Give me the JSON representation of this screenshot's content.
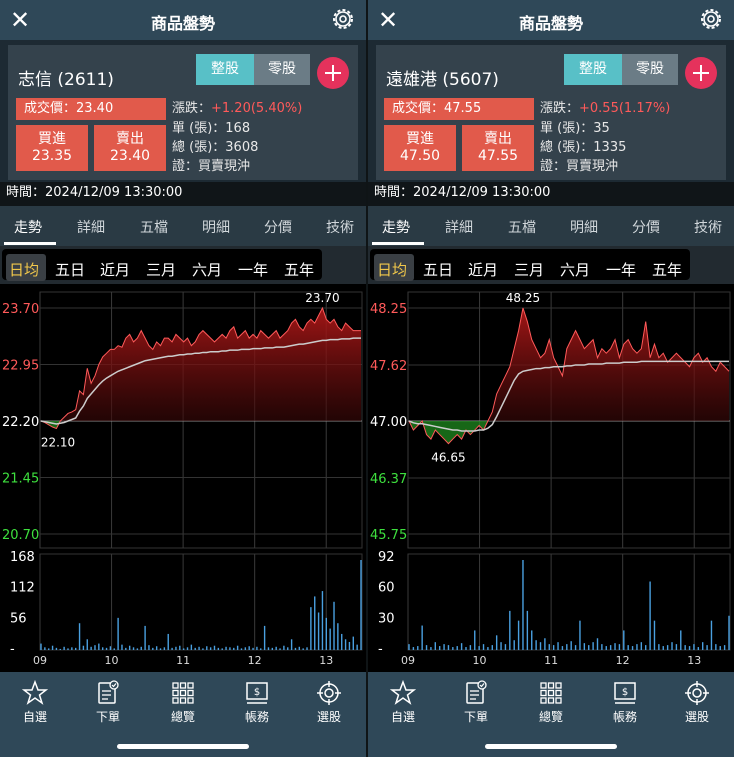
{
  "panels": [
    {
      "header": {
        "title": "商品盤勢"
      },
      "quote": {
        "stock": "志信 (2611)",
        "seg_whole": "整股",
        "seg_odd": "零股",
        "trade_label": "成交價：23.40",
        "change_label": "漲跌：",
        "change_value": "+1.20(5.40%)",
        "unit_label": "單 (張)：168",
        "total_label": "總 (張)：3608",
        "cert_label": "證：買賣現沖",
        "buy_label": "買進",
        "buy_price": "23.35",
        "sell_label": "賣出",
        "sell_price": "23.40"
      },
      "time_label": "時間：2024/12/09 13:30:00",
      "chart": {
        "ref": 22.2,
        "price_min": 20.7,
        "price_max": 23.7,
        "price_axis": [
          "23.70",
          "22.95",
          "22.20",
          "21.45",
          "20.70"
        ],
        "high_label": "23.70",
        "low_label": "22.10",
        "volume_axis": [
          "168",
          "112",
          "56",
          "-"
        ],
        "volume_max": 168,
        "x_labels": [
          "09",
          "10",
          "11",
          "12",
          "13"
        ],
        "price": [
          22.2,
          22.18,
          22.15,
          22.12,
          22.1,
          22.2,
          22.25,
          22.3,
          22.32,
          22.35,
          22.6,
          22.55,
          22.9,
          22.7,
          22.8,
          22.95,
          23.05,
          23.1,
          23.15,
          23.15,
          23.2,
          23.18,
          23.3,
          23.35,
          23.25,
          23.3,
          23.4,
          23.3,
          23.2,
          23.15,
          23.25,
          23.2,
          23.3,
          23.3,
          23.25,
          23.35,
          23.3,
          23.25,
          23.3,
          23.2,
          23.25,
          23.35,
          23.4,
          23.35,
          23.3,
          23.25,
          23.3,
          23.35,
          23.3,
          23.4,
          23.45,
          23.3,
          23.35,
          23.4,
          23.3,
          23.35,
          23.3,
          23.4,
          23.35,
          23.3,
          23.35,
          23.4,
          23.3,
          23.35,
          23.4,
          23.5,
          23.55,
          23.45,
          23.4,
          23.5,
          23.55,
          23.5,
          23.6,
          23.7,
          23.55,
          23.5,
          23.55,
          23.45,
          23.4,
          23.5,
          23.45,
          23.4,
          23.4,
          23.4
        ],
        "avg": [
          22.2,
          22.19,
          22.18,
          22.17,
          22.16,
          22.17,
          22.18,
          22.2,
          22.22,
          22.24,
          22.33,
          22.4,
          22.5,
          22.56,
          22.62,
          22.68,
          22.73,
          22.77,
          22.8,
          22.83,
          22.86,
          22.88,
          22.9,
          22.92,
          22.94,
          22.96,
          22.98,
          23.0,
          23.01,
          23.02,
          23.03,
          23.04,
          23.05,
          23.06,
          23.06,
          23.07,
          23.08,
          23.08,
          23.09,
          23.09,
          23.1,
          23.1,
          23.11,
          23.11,
          23.12,
          23.12,
          23.12,
          23.13,
          23.13,
          23.14,
          23.14,
          23.14,
          23.15,
          23.15,
          23.15,
          23.16,
          23.16,
          23.16,
          23.17,
          23.17,
          23.17,
          23.18,
          23.18,
          23.18,
          23.19,
          23.2,
          23.21,
          23.22,
          23.22,
          23.23,
          23.24,
          23.25,
          23.26,
          23.27,
          23.27,
          23.28,
          23.28,
          23.28,
          23.29,
          23.29,
          23.29,
          23.3,
          23.3,
          23.3
        ],
        "volume": [
          12,
          5,
          3,
          8,
          4,
          2,
          6,
          3,
          5,
          4,
          50,
          8,
          20,
          6,
          9,
          12,
          5,
          4,
          7,
          3,
          60,
          10,
          4,
          8,
          5,
          3,
          6,
          45,
          9,
          4,
          7,
          3,
          5,
          30,
          4,
          6,
          8,
          3,
          5,
          10,
          4,
          6,
          3,
          7,
          5,
          8,
          4,
          3,
          6,
          5,
          4,
          8,
          3,
          5,
          7,
          4,
          6,
          3,
          45,
          5,
          4,
          6,
          3,
          8,
          5,
          20,
          4,
          6,
          3,
          5,
          80,
          100,
          70,
          110,
          60,
          40,
          90,
          50,
          30,
          20,
          15,
          25,
          10,
          168
        ]
      }
    },
    {
      "header": {
        "title": "商品盤勢"
      },
      "quote": {
        "stock": "遠雄港 (5607)",
        "seg_whole": "整股",
        "seg_odd": "零股",
        "trade_label": "成交價：47.55",
        "change_label": "漲跌：",
        "change_value": "+0.55(1.17%)",
        "unit_label": "單 (張)：35",
        "total_label": "總 (張)：1335",
        "cert_label": "證：買賣現沖",
        "buy_label": "買進",
        "buy_price": "47.50",
        "sell_label": "賣出",
        "sell_price": "47.55"
      },
      "time_label": "時間：2024/12/09 13:30:00",
      "chart": {
        "ref": 47.0,
        "price_min": 45.75,
        "price_max": 48.25,
        "price_axis": [
          "48.25",
          "47.62",
          "47.00",
          "46.37",
          "45.75"
        ],
        "high_label": "48.25",
        "low_label": "46.65",
        "volume_axis": [
          "92",
          "60",
          "30",
          "-"
        ],
        "volume_max": 92,
        "x_labels": [
          "09",
          "10",
          "11",
          "12",
          "13"
        ],
        "price": [
          47.0,
          46.9,
          46.95,
          47.0,
          46.85,
          46.8,
          46.9,
          46.85,
          46.8,
          46.75,
          46.8,
          46.85,
          46.8,
          46.9,
          46.85,
          46.9,
          46.95,
          46.9,
          47.0,
          47.1,
          47.3,
          47.4,
          47.5,
          47.6,
          47.8,
          48.0,
          48.25,
          48.1,
          47.9,
          47.8,
          47.7,
          47.75,
          47.9,
          47.7,
          47.6,
          47.5,
          47.8,
          47.9,
          48.0,
          47.9,
          47.8,
          47.85,
          47.9,
          47.7,
          47.8,
          47.75,
          47.8,
          47.9,
          47.7,
          47.85,
          47.9,
          47.8,
          47.75,
          47.8,
          48.1,
          47.7,
          47.85,
          47.7,
          47.75,
          47.65,
          47.7,
          47.75,
          47.7,
          47.65,
          47.6,
          47.7,
          47.75,
          47.65,
          47.7,
          47.6,
          47.55,
          47.65,
          47.6,
          47.55
        ],
        "avg": [
          47.0,
          46.98,
          46.97,
          46.97,
          46.96,
          46.95,
          46.94,
          46.93,
          46.92,
          46.91,
          46.9,
          46.9,
          46.89,
          46.89,
          46.89,
          46.89,
          46.9,
          46.9,
          46.92,
          46.96,
          47.05,
          47.15,
          47.25,
          47.35,
          47.45,
          47.52,
          47.55,
          47.56,
          47.57,
          47.58,
          47.58,
          47.59,
          47.59,
          47.6,
          47.6,
          47.6,
          47.61,
          47.61,
          47.62,
          47.62,
          47.62,
          47.63,
          47.63,
          47.63,
          47.63,
          47.64,
          47.64,
          47.64,
          47.64,
          47.65,
          47.65,
          47.65,
          47.65,
          47.66,
          47.66,
          47.66,
          47.66,
          47.66,
          47.66,
          47.66,
          47.66,
          47.66,
          47.66,
          47.66,
          47.66,
          47.66,
          47.66,
          47.66,
          47.66,
          47.66,
          47.66,
          47.66,
          47.66,
          47.66
        ],
        "volume": [
          6,
          3,
          4,
          25,
          5,
          3,
          8,
          4,
          6,
          5,
          3,
          4,
          7,
          3,
          5,
          20,
          4,
          6,
          3,
          5,
          15,
          8,
          6,
          40,
          10,
          30,
          92,
          40,
          20,
          10,
          8,
          12,
          6,
          5,
          8,
          4,
          6,
          9,
          5,
          30,
          7,
          5,
          8,
          12,
          6,
          4,
          5,
          7,
          6,
          20,
          5,
          4,
          6,
          8,
          5,
          70,
          30,
          6,
          4,
          5,
          8,
          6,
          20,
          5,
          4,
          6,
          3,
          8,
          5,
          30,
          6,
          4,
          5,
          35
        ]
      }
    }
  ],
  "tabs": [
    "走勢",
    "詳細",
    "五檔",
    "明細",
    "分價",
    "技術"
  ],
  "ranges": [
    "日均",
    "五日",
    "近月",
    "三月",
    "六月",
    "一年",
    "五年"
  ],
  "nav": [
    {
      "label": "自選",
      "icon": "star-icon"
    },
    {
      "label": "下單",
      "icon": "order-form-icon"
    },
    {
      "label": "總覽",
      "icon": "grid-icon"
    },
    {
      "label": "帳務",
      "icon": "account-icon"
    },
    {
      "label": "選股",
      "icon": "target-icon"
    }
  ],
  "colors": {
    "up": "#ff5a5a",
    "down": "#3ee03e",
    "volume": "#4aa0e0",
    "avg": "#cccccc"
  }
}
